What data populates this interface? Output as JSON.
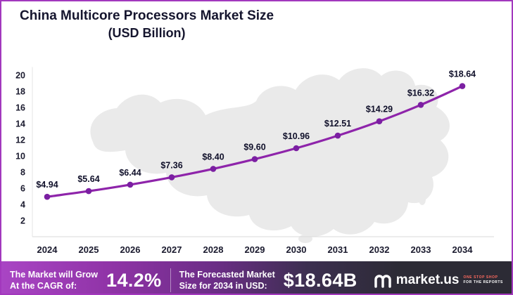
{
  "title": {
    "line1": "China Multicore Processors Market Size",
    "line2": "(USD Billion)"
  },
  "chart_data": {
    "type": "line",
    "title": "China Multicore Processors Market Size (USD Billion)",
    "categories": [
      "2024",
      "2025",
      "2026",
      "2027",
      "2028",
      "2029",
      "2030",
      "2031",
      "2032",
      "2033",
      "2034"
    ],
    "values": [
      4.94,
      5.64,
      6.44,
      7.36,
      8.4,
      9.6,
      10.96,
      12.51,
      14.29,
      16.32,
      18.64
    ],
    "series_name": "Market Size (USD Billion)",
    "xlabel": "",
    "ylabel": "",
    "ylim": [
      0,
      21
    ],
    "yticks": [
      2,
      4,
      6,
      8,
      10,
      12,
      14,
      16,
      18,
      20
    ],
    "grid": false,
    "legend": false,
    "label_prefix": "$",
    "line_color": "#8e24aa",
    "marker_color": "#7b1fa2"
  },
  "footer": {
    "cagr_label_line1": "The Market will Grow",
    "cagr_label_line2": "At the CAGR of:",
    "cagr_value": "14.2%",
    "forecast_label_line1": "The Forecasted Market",
    "forecast_label_line2": "Size for 2034 in USD:",
    "forecast_value": "$18.64B",
    "brand": "market.us",
    "tagline_line1": "ONE STOP SHOP",
    "tagline_line2": "FOR THE REPORTS"
  },
  "colors": {
    "accent": "#8e24aa",
    "frame_border": "#a238bd",
    "map_fill": "#eaeaea",
    "text_dark": "#15152e",
    "footer_gradient_left": "#a945c4",
    "footer_gradient_right": "#2c2b35"
  }
}
